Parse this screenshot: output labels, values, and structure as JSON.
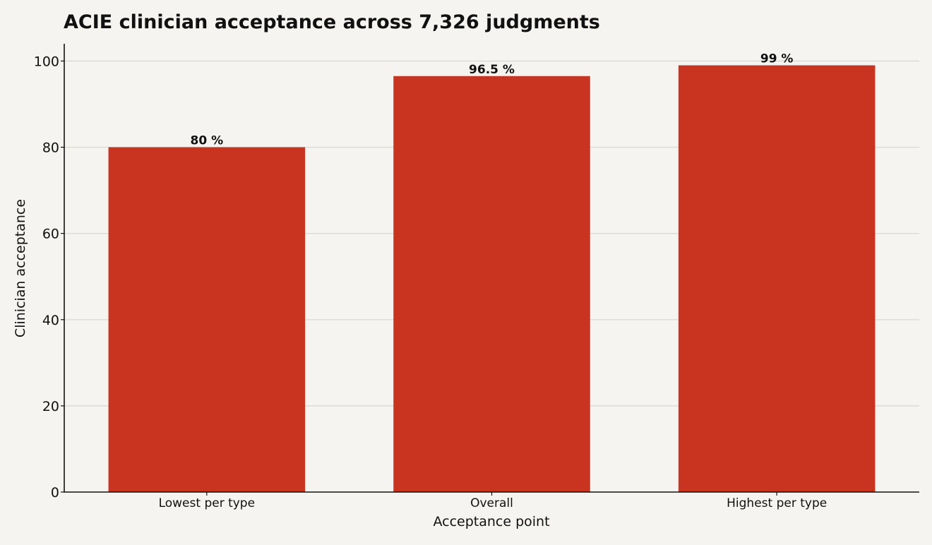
{
  "chart_data": {
    "type": "bar",
    "title": "ACIE clinician acceptance across 7,326 judgments",
    "xlabel": "Acceptance point",
    "ylabel": "Clinician acceptance",
    "categories": [
      "Lowest per type",
      "Overall",
      "Highest per type"
    ],
    "values": [
      80,
      96.5,
      99
    ],
    "value_labels": [
      "80 %",
      "96.5 %",
      "99 %"
    ],
    "ylim": [
      0,
      104
    ],
    "yticks": [
      "0",
      "20",
      "40",
      "60",
      "80",
      "100"
    ],
    "grid": "horizontal",
    "bar_color": "#c93420",
    "background_color": "#f5f4f0"
  }
}
